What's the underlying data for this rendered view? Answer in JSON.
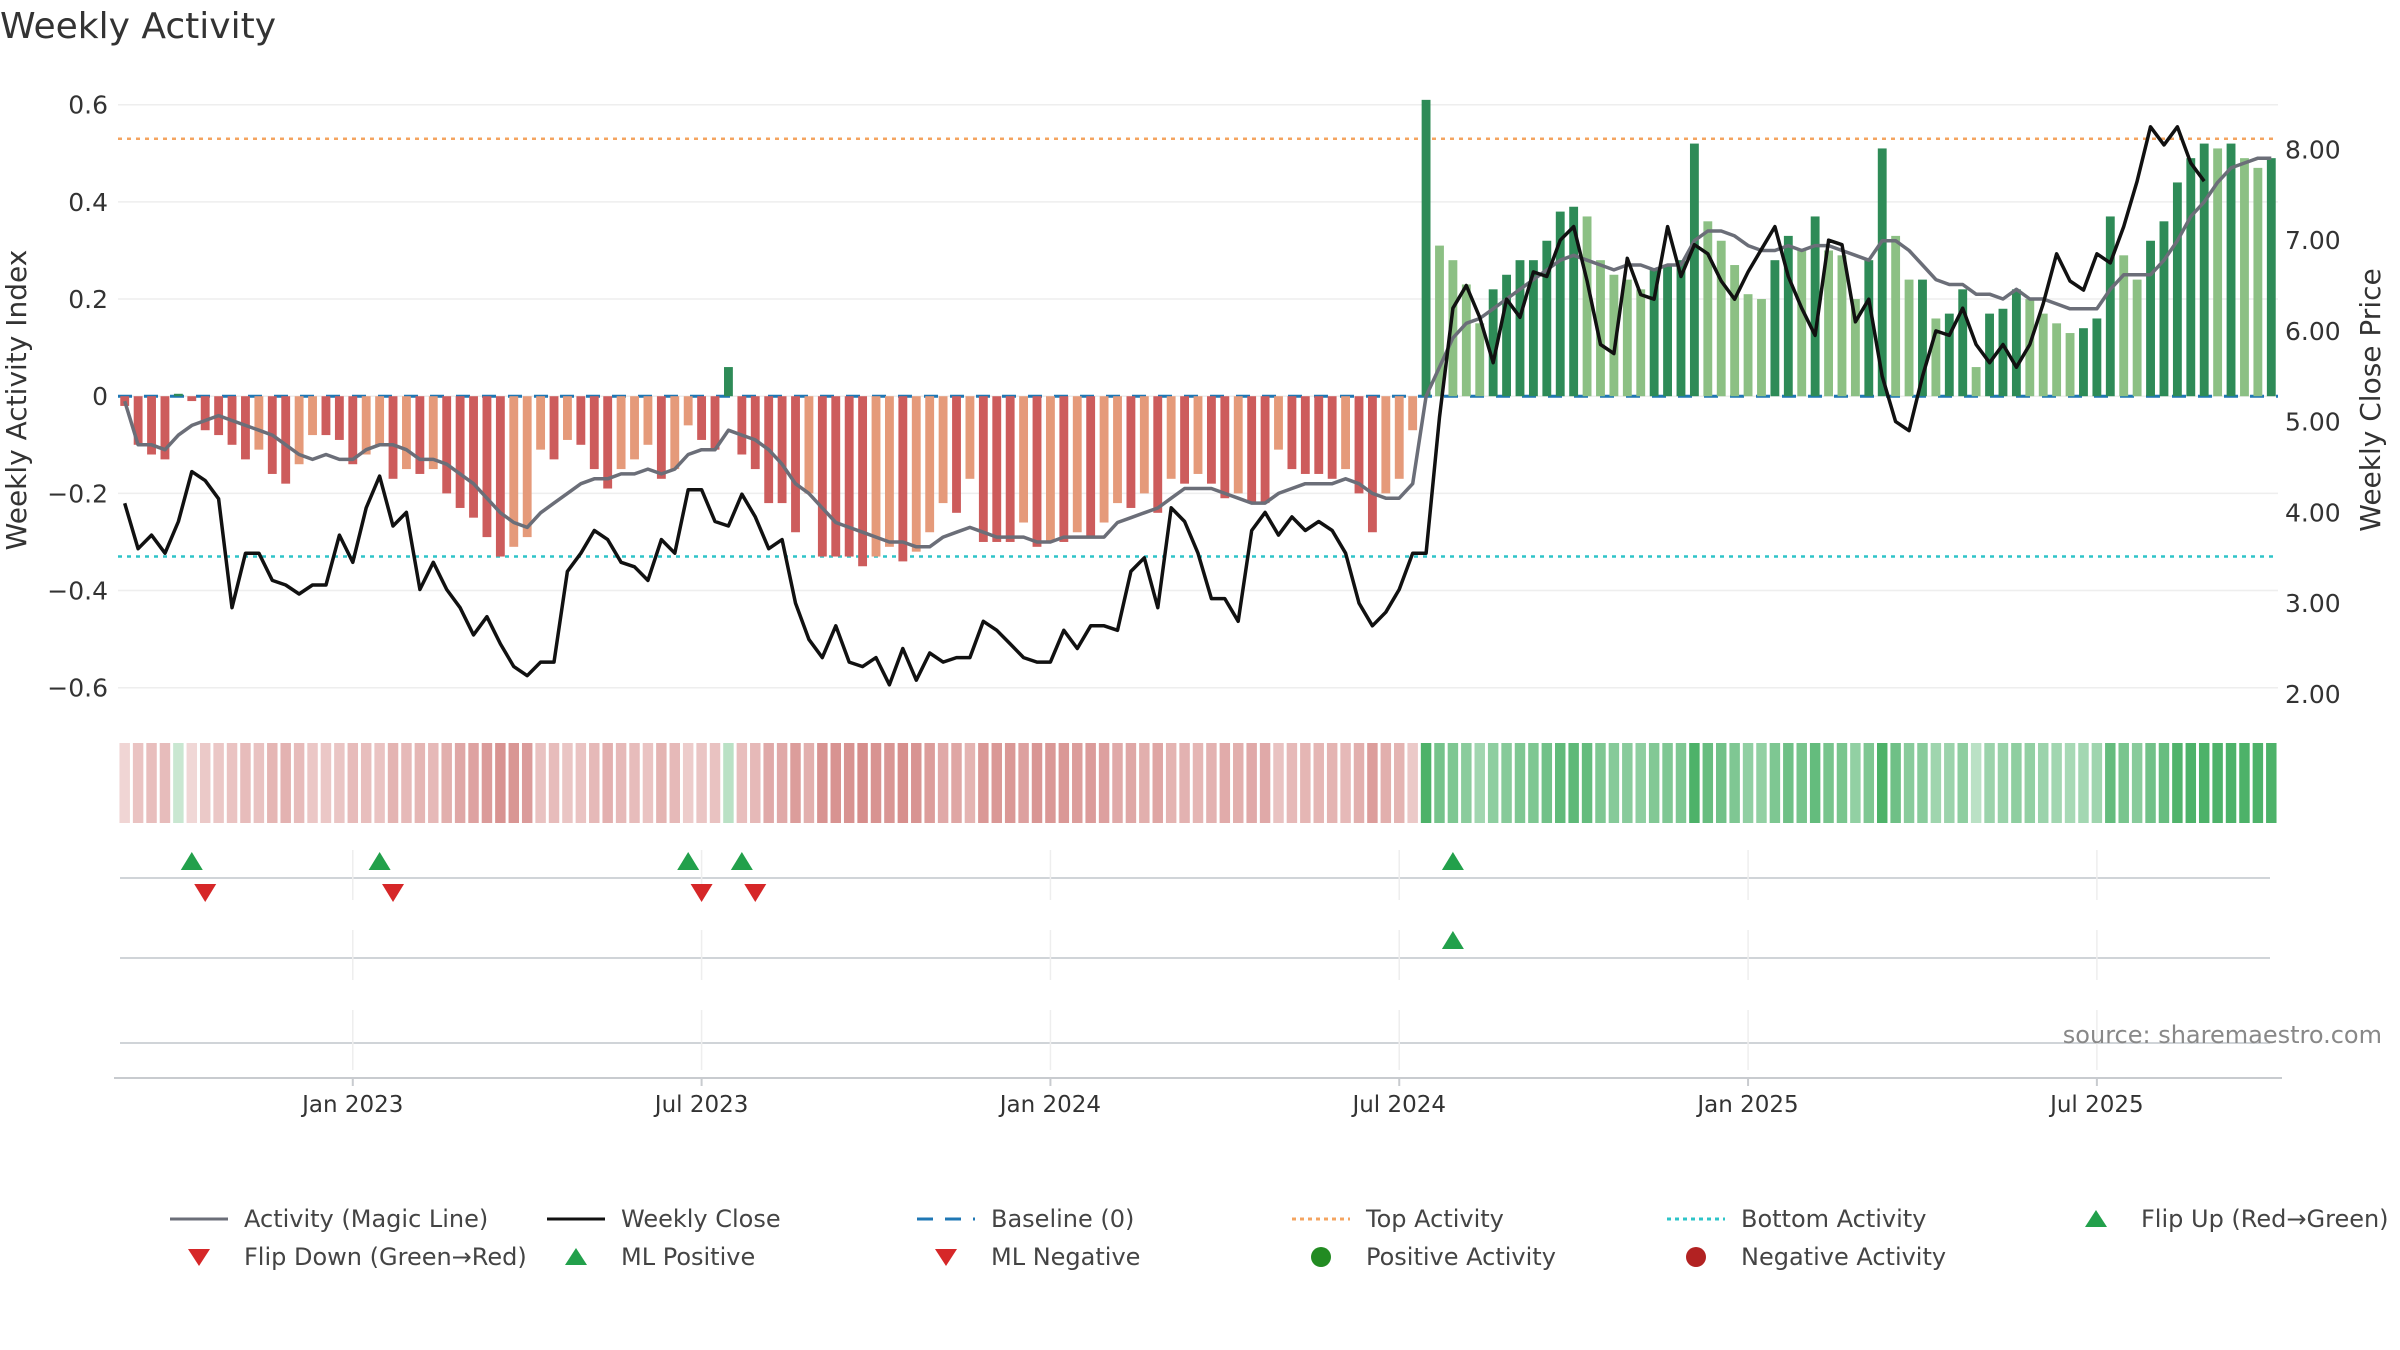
{
  "chart_data": {
    "type": "bar",
    "title": "Weekly Activity",
    "ylabel_left": "Weekly Activity Index",
    "ylabel_right": "Weekly Close Price",
    "ylim_left": [
      -0.65,
      0.62
    ],
    "ylim_right": [
      1.8,
      8.6
    ],
    "yticks_left": [
      0.6,
      0.4,
      0.2,
      0,
      -0.2,
      -0.4,
      -0.6
    ],
    "ytick_labels_left": [
      "0.6",
      "0.4",
      "0.2",
      "0",
      "−0.2",
      "−0.4",
      "−0.6"
    ],
    "yticks_right": [
      8,
      7,
      6,
      5,
      4,
      3,
      2
    ],
    "ytick_labels_right": [
      "8.00",
      "7.00",
      "6.00",
      "5.00",
      "4.00",
      "3.00",
      "2.00"
    ],
    "x_ticks": [
      {
        "week": 17,
        "label": "Jan 2023"
      },
      {
        "week": 43,
        "label": "Jul 2023"
      },
      {
        "week": 69,
        "label": "Jan 2024"
      },
      {
        "week": 95,
        "label": "Jul 2024"
      },
      {
        "week": 121,
        "label": "Jan 2025"
      },
      {
        "week": 147,
        "label": "Jul 2025"
      }
    ],
    "top_activity": 0.53,
    "bottom_activity": -0.33,
    "baseline": 0,
    "activity": [
      -0.02,
      -0.1,
      -0.12,
      -0.13,
      0.005,
      -0.01,
      -0.07,
      -0.08,
      -0.1,
      -0.13,
      -0.11,
      -0.16,
      -0.18,
      -0.14,
      -0.08,
      -0.08,
      -0.09,
      -0.14,
      -0.12,
      -0.1,
      -0.17,
      -0.15,
      -0.16,
      -0.15,
      -0.2,
      -0.23,
      -0.25,
      -0.29,
      -0.33,
      -0.31,
      -0.29,
      -0.11,
      -0.13,
      -0.09,
      -0.1,
      -0.15,
      -0.19,
      -0.15,
      -0.13,
      -0.1,
      -0.17,
      -0.15,
      -0.06,
      -0.09,
      -0.11,
      0.06,
      -0.12,
      -0.15,
      -0.22,
      -0.22,
      -0.28,
      -0.2,
      -0.33,
      -0.33,
      -0.33,
      -0.35,
      -0.33,
      -0.31,
      -0.34,
      -0.32,
      -0.28,
      -0.22,
      -0.24,
      -0.17,
      -0.3,
      -0.3,
      -0.3,
      -0.26,
      -0.31,
      -0.3,
      -0.3,
      -0.28,
      -0.29,
      -0.26,
      -0.22,
      -0.23,
      -0.2,
      -0.24,
      -0.17,
      -0.18,
      -0.16,
      -0.18,
      -0.21,
      -0.2,
      -0.22,
      -0.22,
      -0.11,
      -0.15,
      -0.16,
      -0.16,
      -0.17,
      -0.15,
      -0.2,
      -0.28,
      -0.2,
      -0.17,
      -0.07,
      0.61,
      0.31,
      0.28,
      0.23,
      0.15,
      0.22,
      0.25,
      0.28,
      0.28,
      0.32,
      0.38,
      0.39,
      0.37,
      0.28,
      0.25,
      0.24,
      0.22,
      0.26,
      0.27,
      0.28,
      0.52,
      0.36,
      0.32,
      0.27,
      0.21,
      0.2,
      0.28,
      0.33,
      0.3,
      0.37,
      0.3,
      0.29,
      0.2,
      0.28,
      0.51,
      0.33,
      0.24,
      0.24,
      0.16,
      0.17,
      0.22,
      0.06,
      0.17,
      0.18,
      0.22,
      0.2,
      0.17,
      0.15,
      0.13,
      0.14,
      0.16,
      0.37,
      0.29,
      0.24,
      0.32,
      0.36,
      0.44,
      0.49,
      0.52,
      0.51,
      0.52,
      0.49,
      0.47,
      0.49
    ],
    "magic_line": [
      -0.01,
      -0.1,
      -0.1,
      -0.11,
      -0.08,
      -0.06,
      -0.05,
      -0.04,
      -0.05,
      -0.06,
      -0.07,
      -0.08,
      -0.1,
      -0.12,
      -0.13,
      -0.12,
      -0.13,
      -0.13,
      -0.11,
      -0.1,
      -0.1,
      -0.11,
      -0.13,
      -0.13,
      -0.14,
      -0.16,
      -0.18,
      -0.21,
      -0.24,
      -0.26,
      -0.27,
      -0.24,
      -0.22,
      -0.2,
      -0.18,
      -0.17,
      -0.17,
      -0.16,
      -0.16,
      -0.15,
      -0.16,
      -0.15,
      -0.12,
      -0.11,
      -0.11,
      -0.07,
      -0.08,
      -0.09,
      -0.11,
      -0.14,
      -0.18,
      -0.2,
      -0.23,
      -0.26,
      -0.27,
      -0.28,
      -0.29,
      -0.3,
      -0.3,
      -0.31,
      -0.31,
      -0.29,
      -0.28,
      -0.27,
      -0.28,
      -0.29,
      -0.29,
      -0.29,
      -0.3,
      -0.3,
      -0.29,
      -0.29,
      -0.29,
      -0.29,
      -0.26,
      -0.25,
      -0.24,
      -0.23,
      -0.21,
      -0.19,
      -0.19,
      -0.19,
      -0.2,
      -0.21,
      -0.22,
      -0.22,
      -0.2,
      -0.19,
      -0.18,
      -0.18,
      -0.18,
      -0.17,
      -0.18,
      -0.2,
      -0.21,
      -0.21,
      -0.18,
      0.0,
      0.06,
      0.12,
      0.15,
      0.16,
      0.18,
      0.2,
      0.22,
      0.24,
      0.26,
      0.28,
      0.29,
      0.28,
      0.27,
      0.26,
      0.27,
      0.27,
      0.26,
      0.27,
      0.27,
      0.32,
      0.34,
      0.34,
      0.33,
      0.31,
      0.3,
      0.3,
      0.31,
      0.3,
      0.31,
      0.31,
      0.3,
      0.29,
      0.28,
      0.32,
      0.32,
      0.3,
      0.27,
      0.24,
      0.23,
      0.23,
      0.21,
      0.21,
      0.2,
      0.22,
      0.2,
      0.2,
      0.19,
      0.18,
      0.18,
      0.18,
      0.22,
      0.25,
      0.25,
      0.25,
      0.28,
      0.32,
      0.37,
      0.4,
      0.44,
      0.47,
      0.48,
      0.49,
      0.49
    ],
    "weekly_close": [
      4.1,
      3.6,
      3.75,
      3.55,
      3.9,
      4.45,
      4.35,
      4.15,
      2.95,
      3.55,
      3.55,
      3.25,
      3.2,
      3.1,
      3.2,
      3.2,
      3.75,
      3.45,
      4.05,
      4.4,
      3.85,
      4.0,
      3.15,
      3.45,
      3.15,
      2.95,
      2.65,
      2.85,
      2.55,
      2.3,
      2.2,
      2.35,
      2.35,
      3.35,
      3.55,
      3.8,
      3.7,
      3.45,
      3.4,
      3.25,
      3.7,
      3.55,
      4.25,
      4.25,
      3.9,
      3.85,
      4.2,
      3.95,
      3.6,
      3.7,
      3.0,
      2.6,
      2.4,
      2.75,
      2.35,
      2.3,
      2.4,
      2.1,
      2.5,
      2.15,
      2.45,
      2.35,
      2.4,
      2.4,
      2.8,
      2.7,
      2.55,
      2.4,
      2.35,
      2.35,
      2.7,
      2.5,
      2.75,
      2.75,
      2.7,
      3.35,
      3.5,
      2.95,
      4.05,
      3.9,
      3.55,
      3.05,
      3.05,
      2.8,
      3.8,
      4.0,
      3.75,
      3.95,
      3.8,
      3.9,
      3.8,
      3.55,
      3.0,
      2.75,
      2.9,
      3.15,
      3.55,
      3.55,
      5.05,
      6.25,
      6.5,
      6.15,
      5.65,
      6.35,
      6.15,
      6.65,
      6.6,
      7.0,
      7.15,
      6.55,
      5.85,
      5.75,
      6.8,
      6.4,
      6.35,
      7.15,
      6.6,
      6.95,
      6.85,
      6.55,
      6.35,
      6.65,
      6.9,
      7.15,
      6.6,
      6.25,
      5.95,
      7.0,
      6.95,
      6.1,
      6.35,
      5.5,
      5.0,
      4.9,
      5.5,
      6.0,
      5.95,
      6.25,
      5.85,
      5.65,
      5.85,
      5.6,
      5.85,
      6.3,
      6.85,
      6.55,
      6.45,
      6.85,
      6.75,
      7.15,
      7.65,
      8.25,
      8.05,
      8.25,
      7.85,
      7.65
    ],
    "flip_up_weeks": [
      5,
      19,
      42,
      46,
      99
    ],
    "flip_down_weeks": [
      6,
      20,
      43,
      47
    ],
    "ml_positive_weeks": [
      99
    ],
    "source_label": "source: sharemaestro.com",
    "legend": [
      {
        "label": "Activity (Magic Line)",
        "kind": "line",
        "color": "#6b6e78",
        "style": "solid"
      },
      {
        "label": "Weekly Close",
        "kind": "line",
        "color": "#111111",
        "style": "solid"
      },
      {
        "label": "Baseline (0)",
        "kind": "line",
        "color": "#1f77b4",
        "style": "dashed"
      },
      {
        "label": "Top Activity",
        "kind": "line",
        "color": "#f4a460",
        "style": "dotted"
      },
      {
        "label": "Bottom Activity",
        "kind": "line",
        "color": "#2ec4c8",
        "style": "dotted"
      },
      {
        "label": "Flip Up (Red→Green)",
        "kind": "tri-up",
        "color": "#22a04b"
      },
      {
        "label": "Flip Down (Green→Red)",
        "kind": "tri-down",
        "color": "#d62728"
      },
      {
        "label": "ML Positive",
        "kind": "tri-up",
        "color": "#22a04b"
      },
      {
        "label": "ML Negative",
        "kind": "tri-down",
        "color": "#d62728"
      },
      {
        "label": "Positive Activity",
        "kind": "dot",
        "color": "#228b22"
      },
      {
        "label": "Negative Activity",
        "kind": "dot",
        "color": "#b22222"
      }
    ],
    "colors": {
      "pos_dark": "#2e8b57",
      "pos_light": "#8cc084",
      "neg_dark": "#cd5c5c",
      "neg_light": "#e59a7a",
      "grid": "#eeeeee",
      "axis_text": "#333333"
    }
  }
}
